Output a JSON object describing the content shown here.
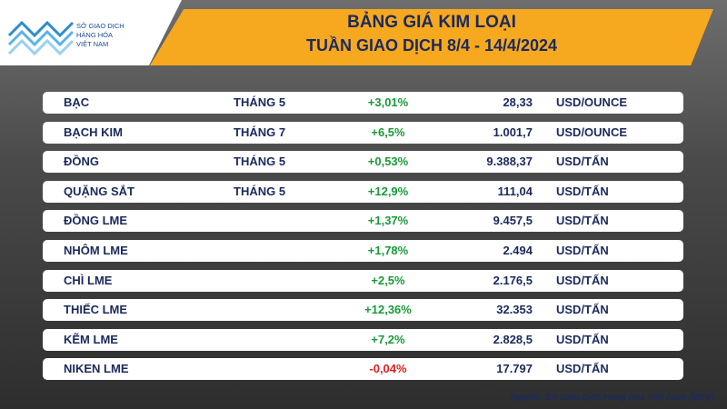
{
  "logo": {
    "lines": [
      "SỞ GIAO DỊCH",
      "HÀNG HÓA",
      "VIỆT NAM"
    ]
  },
  "header": {
    "title": "BẢNG GIÁ KIM LOẠI",
    "subtitle": "TUẦN GIAO DỊCH 8/4 - 14/4/2024"
  },
  "table": {
    "rows": [
      {
        "name": "BẠC",
        "month": "THÁNG 5",
        "change": "+3,01%",
        "price": "28,33",
        "unit": "USD/OUNCE"
      },
      {
        "name": "BẠCH KIM",
        "month": "THÁNG 7",
        "change": "+6,5%",
        "price": "1.001,7",
        "unit": "USD/OUNCE"
      },
      {
        "name": "ĐỒNG",
        "month": "THÁNG 5",
        "change": "+0,53%",
        "price": "9.388,37",
        "unit": "USD/TẤN"
      },
      {
        "name": "QUẶNG SẮT",
        "month": "THÁNG 5",
        "change": "+12,9%",
        "price": "111,04",
        "unit": "USD/TẤN"
      },
      {
        "name": "ĐỒNG LME",
        "change": "+1,37%",
        "price": "9.457,5",
        "unit": "USD/TẤN"
      },
      {
        "name": "NHÔM LME",
        "change": "+1,78%",
        "price": "2.494",
        "unit": "USD/TẤN"
      },
      {
        "name": "CHÌ LME",
        "change": "+2,5%",
        "price": "2.176,5",
        "unit": "USD/TẤN"
      },
      {
        "name": "THIẾC LME",
        "change": "+12,36%",
        "price": "32.353",
        "unit": "USD/TẤN"
      },
      {
        "name": "KẼM LME",
        "change": "+7,2%",
        "price": "2.828,5",
        "unit": "USD/TẤN"
      },
      {
        "name": "NIKEN LME",
        "change": "-0,04%",
        "price": "17.797",
        "unit": "USD/TẤN"
      }
    ]
  },
  "source": "Nguồn: Sở Giao dịch Hàng hóa Việt Nam (MXV)"
}
